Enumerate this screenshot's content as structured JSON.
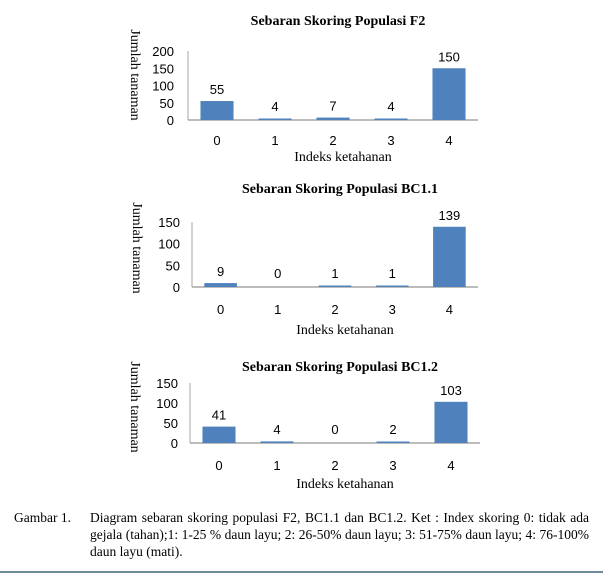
{
  "chart_data": [
    {
      "type": "bar",
      "title": "Sebaran Skoring Populasi F2",
      "xlabel": "Indeks ketahanan",
      "ylabel": "Jumlah tanaman",
      "categories": [
        "0",
        "1",
        "2",
        "3",
        "4"
      ],
      "values": [
        55,
        4,
        7,
        4,
        150
      ],
      "ylim": [
        0,
        200
      ],
      "yticks": [
        "0",
        "50",
        "100",
        "150",
        "200"
      ],
      "grid": false,
      "legend": "none",
      "bar_color": "#4f81bd"
    },
    {
      "type": "bar",
      "title": "Sebaran Skoring Populasi BC1.1",
      "xlabel": "Indeks ketahanan",
      "ylabel": "Jumlah tanaman",
      "categories": [
        "0",
        "1",
        "2",
        "3",
        "4"
      ],
      "values": [
        9,
        0,
        1,
        1,
        139
      ],
      "ylim": [
        0,
        150
      ],
      "yticks": [
        "0",
        "50",
        "100",
        "150"
      ],
      "grid": false,
      "legend": "none",
      "bar_color": "#4f81bd"
    },
    {
      "type": "bar",
      "title": "Sebaran Skoring Populasi BC1.2",
      "xlabel": "Indeks ketahanan",
      "ylabel": "Jumlah tanaman",
      "categories": [
        "0",
        "1",
        "2",
        "3",
        "4"
      ],
      "values": [
        41,
        4,
        0,
        2,
        103
      ],
      "ylim": [
        0,
        150
      ],
      "yticks": [
        "0",
        "50",
        "100",
        "150"
      ],
      "grid": false,
      "legend": "none",
      "bar_color": "#4f81bd"
    }
  ],
  "caption": {
    "lead": "Gambar 1.",
    "text": "Diagram sebaran skoring populasi F2, BC1.1 dan BC1.2. Ket : Index skoring 0: tidak ada gejala (tahan);1:  1-25 % daun layu; 2: 26-50% daun layu; 3: 51-75% daun layu; 4: 76-100% daun layu (mati)."
  },
  "colors": {
    "bar": "#4f81bd",
    "axis": "#a6a6a6",
    "rule": "#6f8a9a"
  }
}
